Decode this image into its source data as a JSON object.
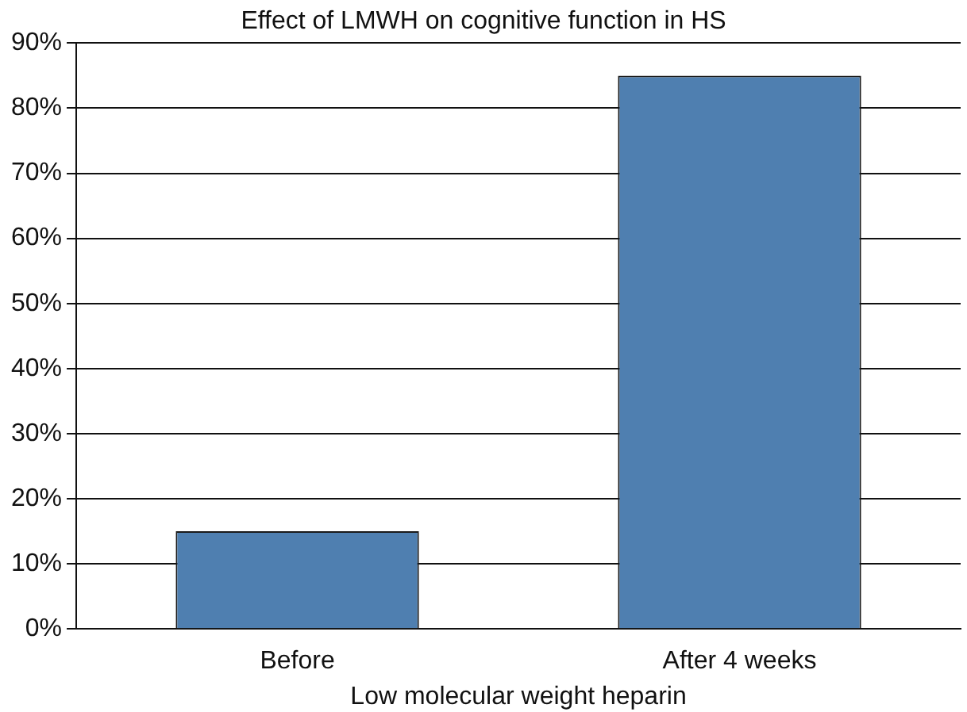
{
  "chart_data": {
    "type": "bar",
    "title": "Effect of LMWH on cognitive function in HS",
    "xlabel": "Low molecular weight heparin",
    "categories": [
      "Before",
      "After 4 weeks"
    ],
    "values": [
      15,
      85
    ],
    "color": "#4f7fb0",
    "ylim": [
      0,
      90
    ],
    "yticks": [
      {
        "value": 0,
        "label": "0%"
      },
      {
        "value": 10,
        "label": "10%"
      },
      {
        "value": 20,
        "label": "20%"
      },
      {
        "value": 30,
        "label": "30%"
      },
      {
        "value": 40,
        "label": "40%"
      },
      {
        "value": 50,
        "label": "50%"
      },
      {
        "value": 60,
        "label": "60%"
      },
      {
        "value": 70,
        "label": "70%"
      },
      {
        "value": 80,
        "label": "80%"
      },
      {
        "value": 90,
        "label": "90%"
      }
    ],
    "grid": "y"
  }
}
